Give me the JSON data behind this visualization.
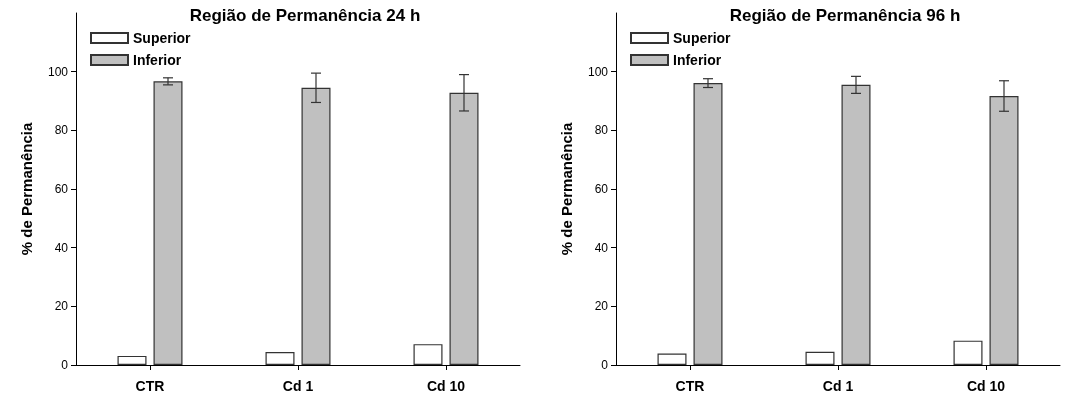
{
  "chart_data": [
    {
      "type": "bar",
      "title": "Região de Permanência 24 h",
      "ylabel": "% de Permanência",
      "categories": [
        "CTR",
        "Cd 1",
        "Cd 10"
      ],
      "ylim": [
        0,
        120
      ],
      "yticks": [
        0,
        20,
        40,
        60,
        80,
        100
      ],
      "grid": false,
      "legend": "top left",
      "series": [
        {
          "name": "Superior",
          "color": "#ffffff",
          "values": [
            3.1,
            4.4,
            7.1
          ]
        },
        {
          "name": "Inferior",
          "color": "#c0c0c0",
          "values": [
            96.7,
            94.5,
            92.8
          ],
          "errors": [
            1.2,
            5,
            6.2
          ]
        }
      ]
    },
    {
      "type": "bar",
      "title": "Região de Permanência 96 h",
      "ylabel": "% de Permanência",
      "categories": [
        "CTR",
        "Cd 1",
        "Cd 10"
      ],
      "ylim": [
        0,
        120
      ],
      "yticks": [
        0,
        20,
        40,
        60,
        80,
        100
      ],
      "grid": false,
      "legend": "top left",
      "series": [
        {
          "name": "Superior",
          "color": "#ffffff",
          "values": [
            3.9,
            4.5,
            8.3
          ]
        },
        {
          "name": "Inferior",
          "color": "#c0c0c0",
          "values": [
            96.1,
            95.5,
            91.7
          ],
          "errors": [
            1.5,
            2.9,
            5.2
          ]
        }
      ]
    }
  ]
}
